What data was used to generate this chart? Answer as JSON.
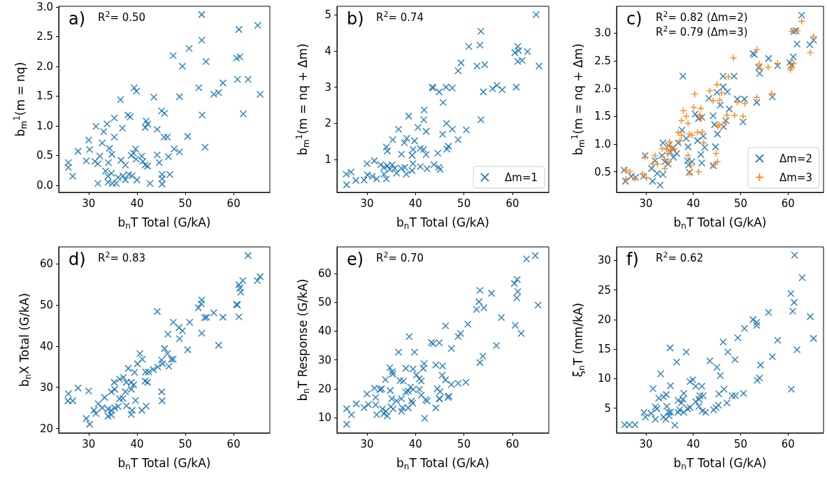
{
  "chart_data": [
    {
      "type": "scatter",
      "xlabel": "b$_{n}$T Total (G/kA)",
      "ylabel": "b$_{m}$$^{1}$(m = nq)",
      "annotations": [
        "a)",
        "R$^{2}$= 0.50"
      ],
      "xlim": [
        23.8,
        67.5
      ],
      "xticks": [
        30,
        40,
        50,
        60
      ],
      "ylim": [
        -0.12,
        3.01
      ],
      "yticks": [
        {
          "value": 0,
          "label": "0.0"
        },
        0.5,
        {
          "value": 1,
          "label": "1.0"
        },
        1.5,
        {
          "value": 2,
          "label": "2.0"
        },
        2.5,
        {
          "value": 3,
          "label": "3.0"
        }
      ],
      "legend": false,
      "series": [
        {
          "color": "#1f77b4",
          "marker": "x",
          "x": [
            53.4,
            65.0,
            61.1,
            53.4,
            50.8,
            47.5,
            54.3,
            60.6,
            61.3,
            49.4,
            60.8,
            63.0,
            57.8,
            52.8,
            56.9,
            55.9,
            65.5,
            39.4,
            39.9,
            36.6,
            43.5,
            48.8,
            45.1,
            45.7,
            53.5,
            62.0,
            38.1,
            38.6,
            35.3,
            33.8,
            31.5,
            33.1,
            37.0,
            41.9,
            42.2,
            41.7,
            44.2,
            30.0,
            35.3,
            45.6,
            46.3,
            50.5,
            32.8,
            30.2,
            27.8,
            34.3,
            34.8,
            39.7,
            47.7,
            48.8,
            54.1,
            25.8,
            25.8,
            26.7,
            29.5,
            31.3,
            31.9,
            32.3,
            34.1,
            36.7,
            37.6,
            38.8,
            39.3,
            39.8,
            41.0,
            41.2,
            41.7,
            42.2,
            44.2,
            44.6,
            46.5,
            45.2,
            45.2,
            45.2,
            46.8,
            31.9,
            33.5,
            34.0,
            34.7,
            34.0,
            34.9,
            35.7,
            36.1,
            37.1,
            37.6,
            38.3,
            39.0,
            40.0,
            42.7
          ],
          "values": [
            2.87,
            2.69,
            2.62,
            2.44,
            2.3,
            2.18,
            2.08,
            2.14,
            2.16,
            2.0,
            1.78,
            1.78,
            1.72,
            1.64,
            1.56,
            1.53,
            1.53,
            1.64,
            1.58,
            1.44,
            1.48,
            1.49,
            1.25,
            1.21,
            1.18,
            1.2,
            1.18,
            1.15,
            1.13,
            1.03,
            0.99,
            0.9,
            0.96,
            1.08,
            1.03,
            0.97,
            0.94,
            0.76,
            0.81,
            0.81,
            0.81,
            0.82,
            0.71,
            0.6,
            0.57,
            0.62,
            0.52,
            0.61,
            0.61,
            0.56,
            0.64,
            0.38,
            0.3,
            0.15,
            0.41,
            0.4,
            0.36,
            0.49,
            0.38,
            0.42,
            0.34,
            0.5,
            0.54,
            0.44,
            0.49,
            0.4,
            0.34,
            0.32,
            0.51,
            0.38,
            0.48,
            0.18,
            0.11,
            0.02,
            0.18,
            0.03,
            0.24,
            0.15,
            0.2,
            0.05,
            0.03,
            0.03,
            0.13,
            0.16,
            0.09,
            0.18,
            0.16,
            0.09,
            0.03
          ]
        }
      ]
    },
    {
      "type": "scatter",
      "xlabel": "b$_{n}$T Total (G/kA)",
      "ylabel": "b$_{m}$$^{1}$(m = nq + Δm)",
      "annotations": [
        "b)",
        "R$^{2}$= 0.74"
      ],
      "xlim": [
        23.8,
        67.5
      ],
      "xticks": [
        30,
        40,
        50,
        60
      ],
      "ylim": [
        0.1,
        5.23
      ],
      "yticks": [
        1,
        2,
        3,
        4,
        5
      ],
      "legend": "bottom right",
      "series": [
        {
          "name": "Δm=1",
          "color": "#1f77b4",
          "marker": "x",
          "x": [
            64.9,
            53.5,
            51.0,
            53.3,
            61.1,
            60.5,
            61.3,
            63.1,
            61.1,
            62.0,
            49.4,
            48.8,
            52.7,
            54.3,
            65.5,
            43.5,
            43.6,
            44.9,
            46.3,
            47.6,
            55.9,
            56.8,
            57.9,
            54.0,
            60.8,
            45.7,
            41.8,
            41.7,
            38.6,
            53.5,
            40.5,
            42.2,
            36.5,
            46.4,
            47.6,
            50.5,
            45.6,
            48.8,
            35.3,
            38.2,
            37.7,
            39.8,
            34.0,
            34.2,
            41.0,
            41.7,
            42.2,
            46.8,
            46.5,
            44.6,
            39.5,
            39.3,
            37.1,
            30.0,
            31.5,
            32.8,
            33.5,
            34.2,
            35.2,
            35.7,
            34.7,
            37.1,
            37.8,
            39.5,
            39.3,
            41.0,
            42.4,
            43.8,
            44.8,
            45.1,
            25.7,
            26.7,
            25.8,
            27.7,
            29.4,
            30.1,
            31.1,
            32.0,
            33.5,
            34.0,
            36.1,
            38.1
          ],
          "values": [
            5.0,
            4.54,
            4.12,
            4.16,
            4.12,
            3.95,
            4.01,
            3.98,
            3.71,
            3.74,
            3.67,
            3.45,
            3.58,
            3.62,
            3.58,
            3.0,
            2.98,
            2.87,
            3.0,
            2.98,
            2.96,
            3.05,
            2.93,
            2.87,
            3.0,
            2.58,
            2.37,
            2.1,
            2.2,
            2.1,
            1.89,
            1.78,
            1.84,
            2.0,
            1.84,
            1.82,
            1.7,
            1.55,
            1.55,
            1.59,
            1.47,
            1.52,
            1.35,
            1.24,
            1.31,
            1.28,
            1.14,
            1.37,
            1.29,
            1.18,
            1.28,
            1.12,
            1.15,
            0.89,
            0.97,
            0.86,
            0.79,
            0.83,
            0.86,
            0.76,
            0.73,
            0.76,
            0.79,
            0.89,
            0.7,
            0.81,
            0.75,
            0.86,
            0.79,
            0.73,
            0.6,
            0.66,
            0.31,
            0.43,
            0.44,
            0.58,
            0.54,
            0.47,
            0.6,
            0.47,
            0.63,
            0.6
          ]
        }
      ]
    },
    {
      "type": "scatter",
      "xlabel": "b$_{n}$T Total (G/kA)",
      "ylabel": "b$_{m}$$^{1}$(m = nq + Δm)",
      "annotations": [
        "c)",
        "R$^{2}$= 0.82 (Δm=2)",
        "R$^{2}$= 0.79 (Δm=3)"
      ],
      "xlim": [
        23.8,
        67.5
      ],
      "xticks": [
        30,
        40,
        50,
        60
      ],
      "ylim": [
        0.13,
        3.48
      ],
      "yticks": [
        0.5,
        {
          "value": 1,
          "label": "1.0"
        },
        1.5,
        {
          "value": 2,
          "label": "2.0"
        },
        2.5,
        {
          "value": 3,
          "label": "3.0"
        }
      ],
      "legend": "bottom right",
      "series": [
        {
          "name": "Δm=2",
          "color": "#1f77b4",
          "marker": "x",
          "x": [
            62.9,
            61.2,
            61.7,
            61.9,
            64.6,
            65.4,
            52.6,
            52.9,
            55.9,
            61.1,
            60.4,
            60.7,
            53.8,
            54.0,
            57.8,
            37.8,
            46.3,
            48.6,
            46.3,
            47.2,
            45.0,
            43.3,
            49.3,
            50.8,
            53.4,
            56.7,
            45.7,
            47.6,
            40.4,
            41.1,
            41.8,
            44.2,
            50.5,
            46.9,
            44.5,
            46.4,
            45.1,
            37.6,
            38.5,
            40.9,
            42.1,
            42.4,
            44.7,
            33.6,
            34.8,
            35.7,
            36.8,
            36.5,
            38.9,
            38.8,
            39.7,
            41.6,
            29.8,
            31.9,
            33.4,
            34.0,
            34.7,
            35.2,
            35.8,
            39.0,
            39.2,
            41.8,
            44.2,
            25.4,
            25.7,
            26.9,
            27.8,
            29.5,
            31.2,
            31.4,
            32.4,
            33.0,
            33.6
          ],
          "values": [
            3.32,
            3.03,
            3.04,
            2.8,
            2.79,
            2.87,
            2.63,
            2.61,
            2.54,
            2.57,
            2.47,
            2.42,
            2.38,
            2.27,
            2.41,
            2.22,
            2.22,
            2.22,
            2.03,
            1.94,
            1.93,
            1.82,
            1.81,
            1.81,
            1.75,
            1.85,
            1.7,
            1.63,
            1.54,
            1.46,
            1.48,
            1.51,
            1.4,
            1.42,
            1.35,
            1.31,
            1.18,
            1.25,
            1.1,
            1.06,
            1.14,
            0.94,
            0.95,
            1.02,
            0.97,
            0.93,
            1.02,
            0.83,
            0.95,
            0.7,
            0.68,
            0.81,
            0.79,
            0.7,
            0.79,
            0.68,
            0.64,
            0.85,
            0.76,
            0.62,
            0.49,
            0.66,
            0.61,
            0.53,
            0.33,
            0.42,
            0.4,
            0.42,
            0.56,
            0.33,
            0.47,
            0.26,
            0.45
          ]
        },
        {
          "name": "Δm=3",
          "color": "#ff7f0e",
          "marker": "cross",
          "x": [
            62.9,
            60.8,
            62.0,
            65.4,
            64.7,
            53.4,
            48.5,
            53.9,
            54.3,
            55.8,
            57.8,
            60.7,
            61.2,
            60.5,
            47.4,
            45.0,
            43.5,
            46.0,
            40.3,
            44.2,
            45.6,
            49.3,
            50.9,
            53.4,
            56.6,
            40.1,
            41.6,
            37.9,
            38.5,
            37.5,
            38.9,
            41.4,
            41.6,
            47.1,
            46.7,
            48.7,
            50.5,
            45.5,
            45.2,
            36.8,
            37.5,
            39.2,
            39.7,
            40.9,
            41.9,
            42.2,
            37.2,
            35.0,
            35.1,
            33.4,
            34.3,
            35.3,
            36.0,
            34.6,
            33.9,
            34.8,
            31.9,
            32.4,
            29.8,
            38.9,
            39.5,
            39.2,
            41.1,
            44.8,
            45.1,
            44.3,
            25.7,
            25.8,
            26.6,
            27.7,
            29.3,
            30.1,
            31.4,
            34.0
          ],
          "values": [
            3.21,
            3.03,
            3.04,
            2.94,
            2.65,
            2.7,
            2.55,
            2.44,
            2.35,
            2.38,
            2.45,
            2.38,
            2.45,
            2.34,
            2.21,
            2.07,
            1.96,
            1.92,
            1.9,
            1.78,
            1.79,
            1.75,
            1.73,
            1.84,
            1.91,
            1.66,
            1.64,
            1.6,
            1.5,
            1.42,
            1.37,
            1.52,
            1.46,
            1.52,
            1.39,
            1.52,
            1.5,
            1.35,
            1.31,
            1.21,
            1.16,
            1.18,
            1.16,
            1.21,
            1.22,
            1.02,
            1.06,
            1.04,
            0.97,
            0.92,
            0.91,
            0.89,
            0.91,
            0.83,
            0.72,
            0.68,
            0.79,
            0.64,
            0.76,
            0.79,
            0.61,
            0.47,
            0.5,
            0.83,
            0.68,
            0.62,
            0.53,
            0.37,
            0.5,
            0.37,
            0.46,
            0.39,
            0.64,
            0.56
          ]
        }
      ]
    },
    {
      "type": "scatter",
      "xlabel": "b$_{n}$T Total (G/kA)",
      "ylabel": "b$_{n}$X Total (G/kA)",
      "annotations": [
        "d)",
        "R$^{2}$= 0.83"
      ],
      "xlim": [
        23.8,
        67.5
      ],
      "xticks": [
        30,
        40,
        50,
        60
      ],
      "ylim": [
        18.9,
        64.1
      ],
      "yticks": [
        20,
        30,
        40,
        50,
        60
      ],
      "legend": false,
      "series": [
        {
          "color": "#1f77b4",
          "marker": "x",
          "x": [
            63.0,
            64.9,
            65.5,
            61.9,
            61.1,
            61.3,
            61.5,
            60.6,
            60.8,
            61.1,
            53.4,
            53.3,
            52.7,
            55.9,
            57.8,
            54.0,
            54.4,
            44.2,
            47.5,
            50.9,
            48.7,
            49.4,
            46.4,
            48.8,
            53.4,
            56.9,
            50.5,
            45.7,
            46.3,
            47.1,
            47.5,
            46.6,
            45.1,
            45.3,
            44.3,
            43.4,
            42.4,
            40.6,
            41.1,
            40.1,
            41.8,
            42.2,
            41.7,
            39.5,
            38.2,
            37.2,
            37.8,
            38.8,
            39.3,
            35.3,
            36.4,
            38.8,
            37.6,
            34.7,
            35.4,
            36.4,
            37.1,
            33.3,
            32.0,
            32.8,
            34.0,
            34.7,
            35.4,
            36.1,
            31.1,
            31.5,
            34.0,
            34.7,
            37.8,
            39.7,
            39.0,
            38.8,
            41.0,
            41.9,
            45.1,
            45.2,
            27.8,
            30.0,
            25.8,
            25.7,
            26.7,
            29.5,
            30.2
          ],
          "values": [
            62.0,
            55.9,
            56.9,
            55.9,
            54.9,
            54.1,
            53.1,
            50.1,
            50.0,
            47.1,
            51.2,
            50.3,
            49.3,
            48.1,
            47.0,
            46.9,
            47.0,
            48.4,
            45.8,
            45.8,
            44.5,
            43.7,
            42.9,
            41.8,
            43.1,
            40.2,
            39.1,
            39.4,
            38.2,
            36.8,
            36.8,
            35.1,
            36.6,
            35.7,
            34.9,
            34.3,
            33.7,
            38.2,
            36.8,
            35.7,
            33.7,
            31.2,
            31.5,
            33.6,
            34.6,
            32.4,
            31.2,
            31.2,
            30.6,
            31.2,
            32.0,
            29.5,
            28.9,
            28.9,
            29.5,
            27.2,
            27.3,
            27.5,
            26.0,
            25.0,
            24.7,
            24.4,
            25.0,
            25.3,
            24.4,
            23.6,
            23.0,
            23.3,
            25.5,
            26.8,
            24.4,
            23.4,
            24.4,
            25.4,
            28.9,
            26.7,
            29.8,
            29.1,
            28.4,
            26.7,
            26.7,
            22.4,
            21.0
          ]
        }
      ]
    },
    {
      "type": "scatter",
      "xlabel": "b$_{n}$T Total (G/kA)",
      "ylabel": "b$_{n}$T Response (G/kA)",
      "annotations": [
        "e)",
        "R$^{2}$= 0.70"
      ],
      "xlim": [
        23.8,
        67.5
      ],
      "xticks": [
        30,
        40,
        50,
        60
      ],
      "ylim": [
        4.7,
        69.2
      ],
      "yticks": [
        10,
        20,
        30,
        40,
        50,
        60
      ],
      "legend": false,
      "series": [
        {
          "color": "#1f77b4",
          "marker": "x",
          "x": [
            64.7,
            62.9,
            61.0,
            60.4,
            61.1,
            60.9,
            65.3,
            53.3,
            55.7,
            53.1,
            52.6,
            54.1,
            57.7,
            60.6,
            61.8,
            56.7,
            46.2,
            50.8,
            48.8,
            49.3,
            43.3,
            43.6,
            44.9,
            47.4,
            38.7,
            36.5,
            39.8,
            53.9,
            53.3,
            41.8,
            44.2,
            45.6,
            34.7,
            35.2,
            38.0,
            39.5,
            40.2,
            41.6,
            45.5,
            46.2,
            33.8,
            35.3,
            36.8,
            37.5,
            40.8,
            41.2,
            47.4,
            48.8,
            50.4,
            39.0,
            39.5,
            38.5,
            38.0,
            40.8,
            31.5,
            32.7,
            33.0,
            30.0,
            34.8,
            44.5,
            45.1,
            31.8,
            41.2,
            42.1,
            42.4,
            44.9,
            45.0,
            46.7,
            46.9,
            39.2,
            39.4,
            35.1,
            36.1,
            37.1,
            27.8,
            25.8,
            26.8,
            29.4,
            30.3,
            31.8,
            32.0,
            33.2,
            33.9,
            33.5,
            34.2,
            34.9,
            35.4,
            37.3,
            37.1,
            38.5,
            41.9,
            44.2,
            25.8
          ],
          "values": [
            66.2,
            65.0,
            57.9,
            56.5,
            53.7,
            51.5,
            49.0,
            54.1,
            53.1,
            50.2,
            47.5,
            48.1,
            44.7,
            42.0,
            39.2,
            35.0,
            41.8,
            42.4,
            38.1,
            39.2,
            36.1,
            35.6,
            36.0,
            34.0,
            38.1,
            32.7,
            32.7,
            31.3,
            29.1,
            28.7,
            28.3,
            27.9,
            27.3,
            25.9,
            27.1,
            26.9,
            24.8,
            27.1,
            24.7,
            23.1,
            23.2,
            25.1,
            22.9,
            22.7,
            23.5,
            22.7,
            21.5,
            21.9,
            22.3,
            20.6,
            19.8,
            19.2,
            18.9,
            19.8,
            20.2,
            19.7,
            20.0,
            18.2,
            19.4,
            20.0,
            19.0,
            17.0,
            17.8,
            16.2,
            15.8,
            16.6,
            16.5,
            17.0,
            17.4,
            15.8,
            15.0,
            16.6,
            15.8,
            16.6,
            14.8,
            13.1,
            11.0,
            13.5,
            14.6,
            14.4,
            11.0,
            13.0,
            12.2,
            11.4,
            10.6,
            13.8,
            13.0,
            13.4,
            12.2,
            13.4,
            9.8,
            13.4,
            7.7
          ]
        }
      ]
    },
    {
      "type": "scatter",
      "xlabel": "b$_{n}$T Total (G/kA)",
      "ylabel": "ξ$_{n}$T (mm/kA)",
      "annotations": [
        "f)",
        "R$^{2}$= 0.62"
      ],
      "xlim": [
        23.8,
        67.5
      ],
      "xticks": [
        30,
        40,
        50,
        60
      ],
      "ylim": [
        0.8,
        32.3
      ],
      "yticks": [
        5,
        10,
        15,
        20,
        25,
        30
      ],
      "legend": false,
      "series": [
        {
          "color": "#1f77b4",
          "marker": "x",
          "x": [
            61.4,
            63.0,
            60.6,
            61.3,
            61.0,
            64.7,
            65.4,
            61.9,
            60.7,
            55.9,
            57.8,
            56.7,
            54.2,
            54.0,
            53.5,
            52.6,
            53.4,
            53.4,
            50.8,
            49.4,
            48.8,
            47.3,
            46.3,
            43.5,
            45.0,
            45.7,
            35.1,
            38.5,
            36.5,
            33.1,
            39.3,
            39.9,
            40.5,
            41.8,
            31.5,
            35.2,
            46.5,
            50.6,
            45.4,
            48.2,
            48.9,
            47.1,
            41.4,
            42.1,
            41.2,
            38.0,
            37.8,
            34.3,
            33.7,
            32.7,
            36.8,
            37.5,
            32.0,
            32.3,
            29.6,
            29.9,
            31.1,
            32.0,
            33.7,
            34.2,
            34.9,
            35.2,
            34.4,
            34.8,
            36.1,
            36.8,
            38.8,
            39.3,
            40.5,
            41.2,
            41.9,
            42.6,
            44.3,
            44.8,
            45.3,
            38.0,
            37.1,
            25.5,
            26.5,
            27.7
          ],
          "values": [
            30.9,
            27.1,
            24.4,
            22.9,
            21.4,
            20.5,
            16.8,
            14.9,
            8.2,
            21.2,
            16.5,
            13.7,
            12.3,
            10.1,
            9.7,
            20.0,
            19.5,
            19.0,
            18.5,
            16.9,
            13.2,
            14.5,
            16.2,
            13.0,
            11.9,
            10.5,
            15.2,
            14.5,
            12.8,
            10.8,
            9.5,
            9.8,
            8.7,
            8.7,
            8.3,
            8.8,
            8.2,
            7.5,
            7.4,
            7.1,
            7.1,
            5.9,
            7.1,
            7.1,
            6.5,
            7.5,
            6.5,
            7.3,
            6.9,
            6.7,
            6.3,
            5.9,
            5.2,
            4.9,
            4.3,
            3.5,
            4.1,
            3.1,
            3.5,
            3.1,
            3.7,
            4.3,
            5.3,
            4.3,
            2.1,
            4.3,
            4.9,
            5.1,
            6.1,
            5.3,
            4.5,
            4.3,
            4.7,
            5.1,
            5.5,
            4.3,
            4.7,
            2.2,
            2.2,
            2.2
          ]
        }
      ]
    }
  ]
}
